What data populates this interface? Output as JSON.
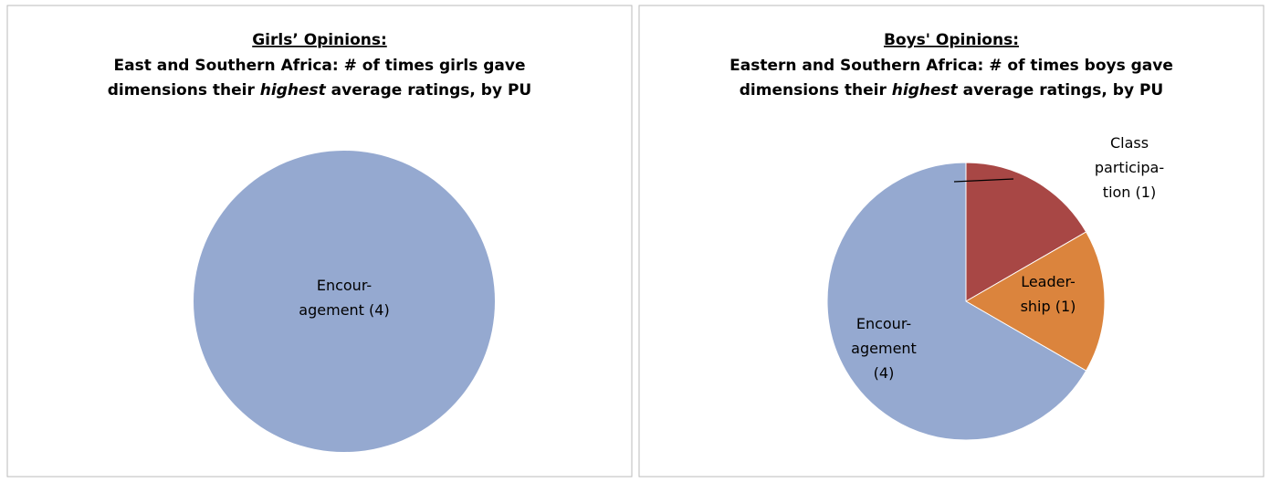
{
  "chart_data": [
    {
      "type": "pie",
      "title": "Girls’ Opinions:",
      "subtitle": [
        "East and Southern Africa: # of times girls gave",
        "dimensions their ",
        "highest",
        " average ratings, by PU"
      ],
      "values": [
        4
      ],
      "value_labels": [
        [
          "Encour-",
          "agement (4)"
        ]
      ],
      "colors": [
        "#95a9d0"
      ]
    },
    {
      "type": "pie",
      "title": "Boys' Opinions:",
      "subtitle": [
        "Eastern and Southern Africa: # of times boys gave",
        "dimensions their ",
        "highest",
        " average ratings, by PU"
      ],
      "values": [
        1,
        1,
        4
      ],
      "value_labels": [
        [
          "Class",
          "participa-",
          "tion (1)"
        ],
        [
          "Leader-",
          "ship (1)"
        ],
        [
          "Encour-",
          "agement",
          "(4)"
        ]
      ],
      "colors": [
        "#a84745",
        "#db843d",
        "#95a9d0"
      ]
    }
  ]
}
